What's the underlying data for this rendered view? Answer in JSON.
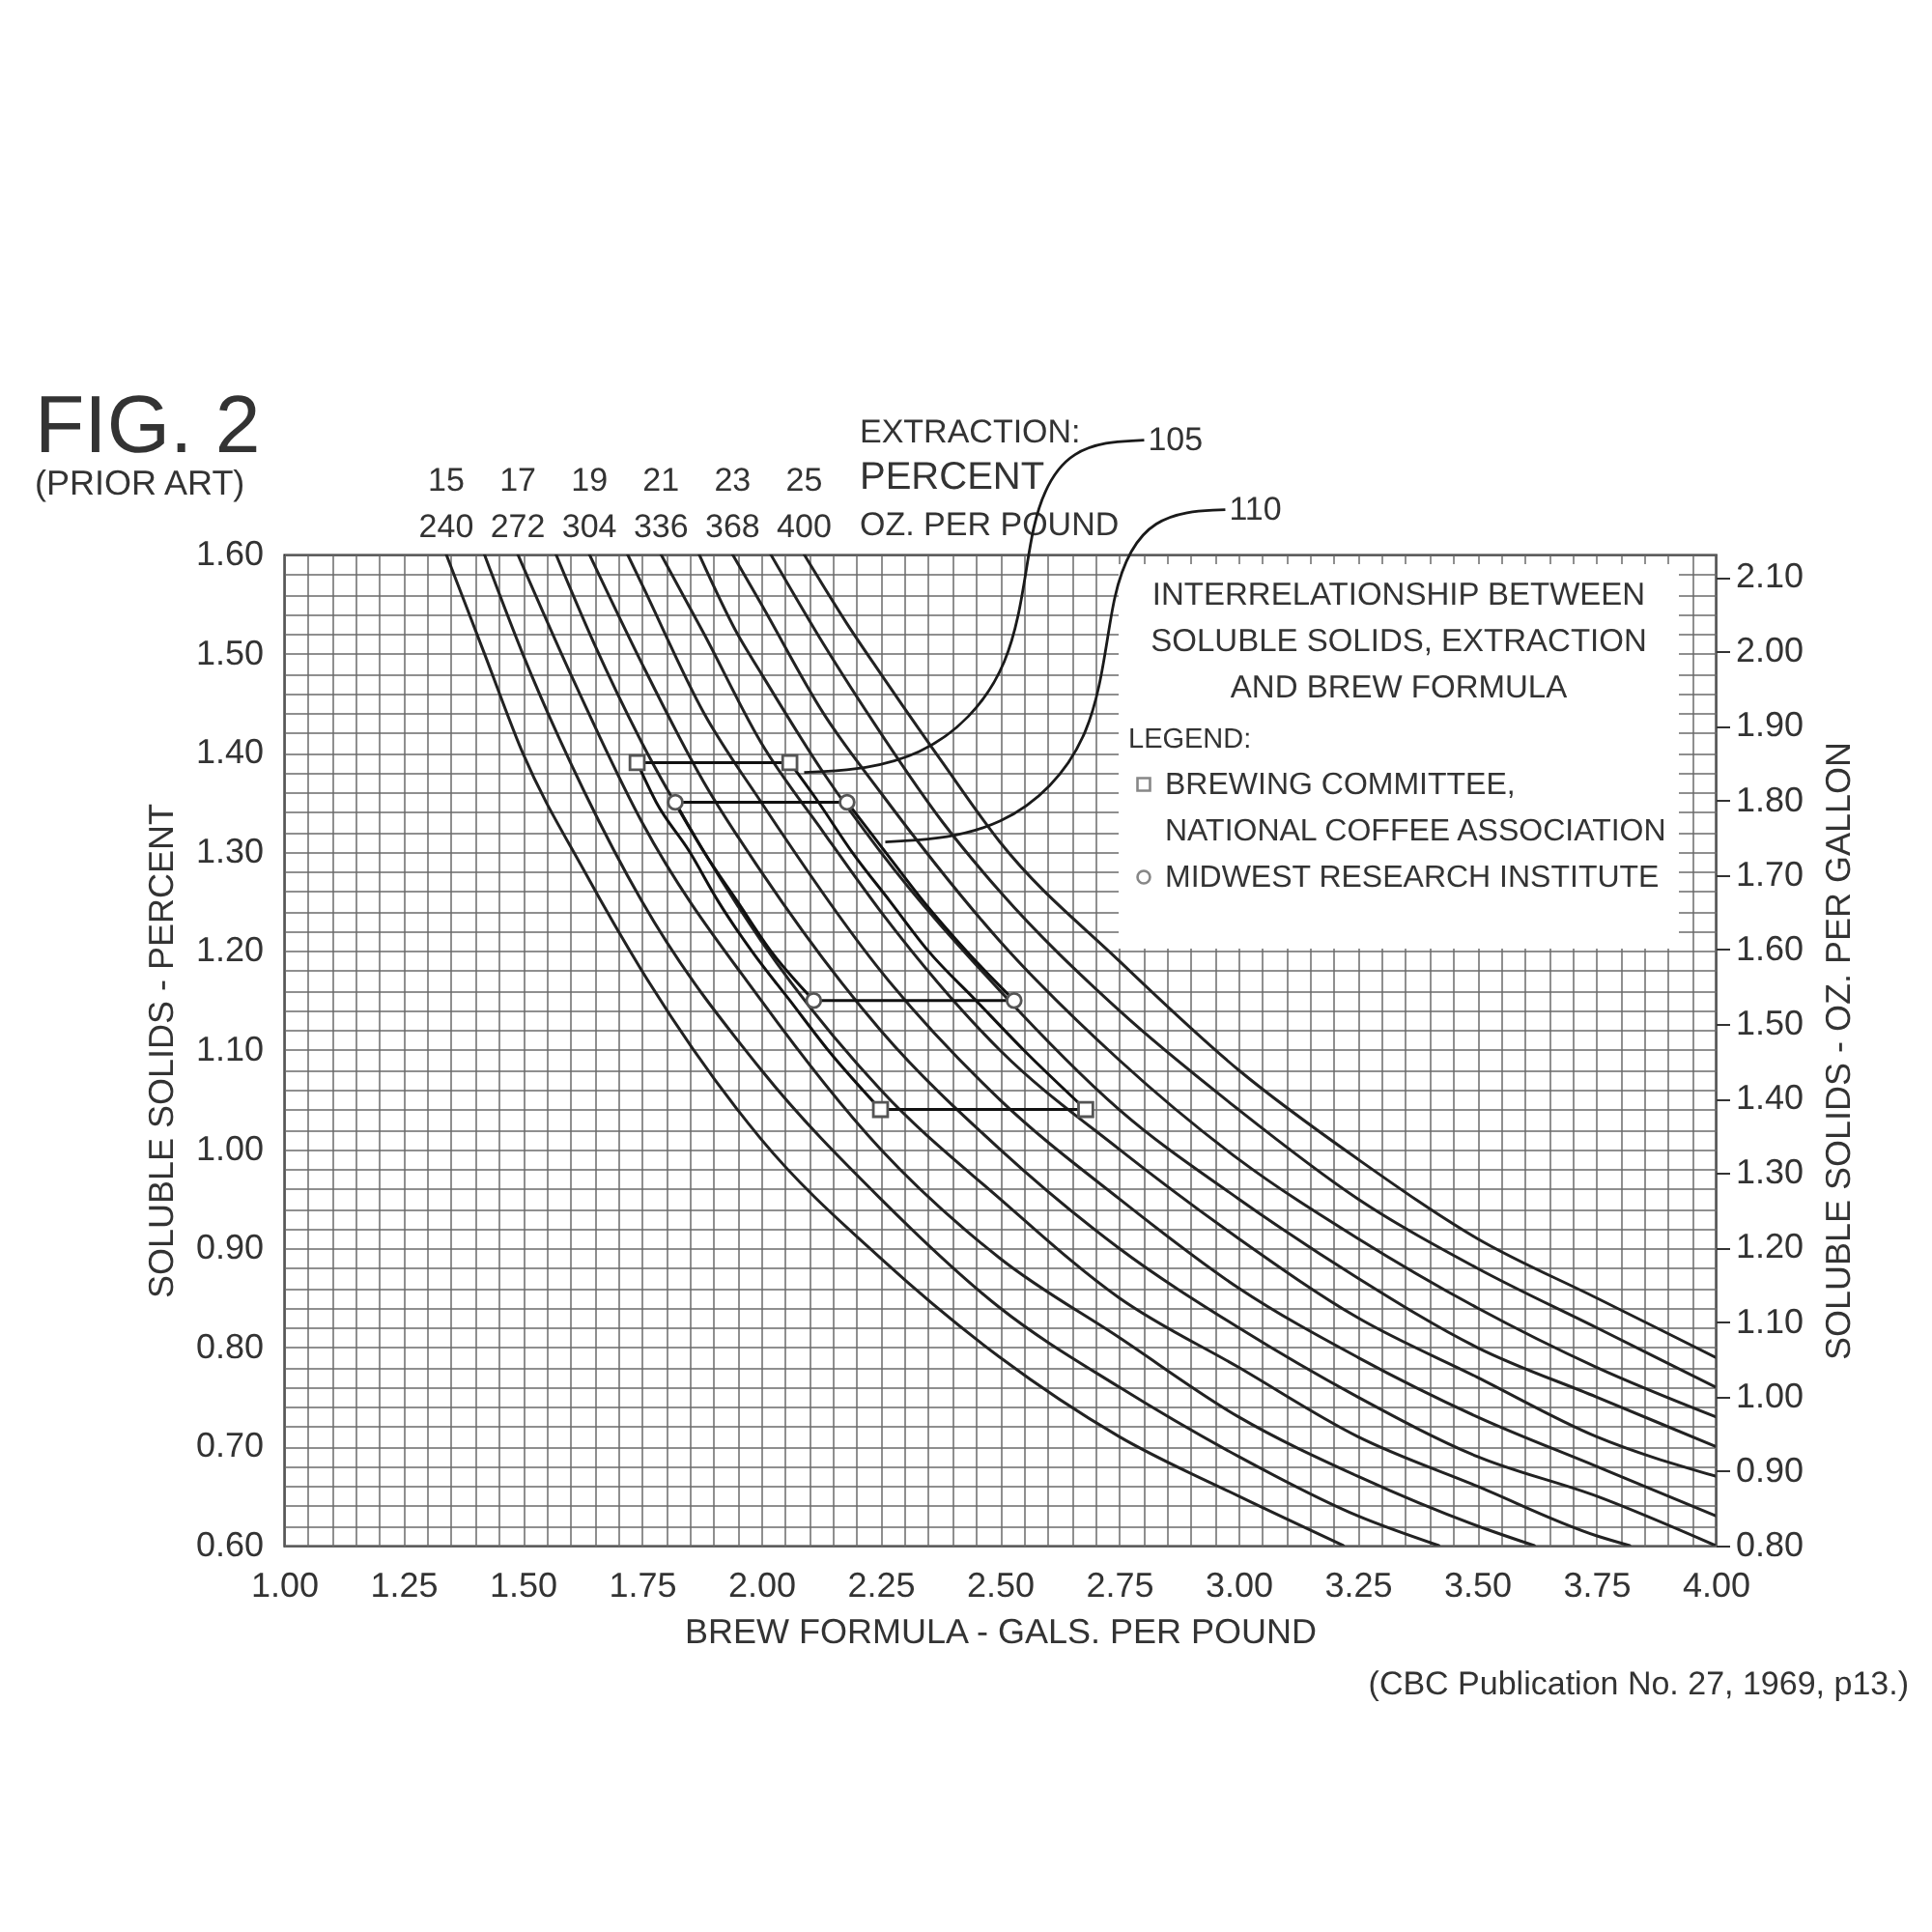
{
  "chart_data": {
    "type": "line",
    "title": "FIG. 2",
    "subtitle": "(PRIOR ART)",
    "xlabel": "BREW FORMULA - GALS. PER POUND",
    "ylabel": "SOLUBLE SOLIDS - PERCENT",
    "y2label": "SOLUBLE SOLIDS - OZ. PER GALLON",
    "legend_title": "LEGEND:",
    "legend": "top right",
    "grid": true,
    "annotations": [
      "EXTRACTION:",
      "PERCENT",
      "OZ. PER POUND",
      "INTERRELATIONSHIP BETWEEN SOLUBLE SOLIDS, EXTRACTION AND BREW FORMULA",
      "(CBC Publication No. 27, 1969, p13.)",
      {
        "text": "240",
        "x": 1.34,
        "y": 1.6
      },
      {
        "text": "272",
        "x": 1.49,
        "y": 1.6
      },
      {
        "text": "304",
        "x": 1.64,
        "y": 1.6
      },
      {
        "text": "336",
        "x": 1.79,
        "y": 1.6
      },
      {
        "text": "368",
        "x": 1.94,
        "y": 1.6
      },
      {
        "text": "400",
        "x": 2.09,
        "y": 1.6
      },
      {
        "text": "105",
        "x": 2.09,
        "y": 1.38
      },
      {
        "text": "110",
        "x": 2.26,
        "y": 1.31
      }
    ],
    "xlim": [
      1,
      4
    ],
    "xticks": [
      {
        "value": 1,
        "label": "1.00"
      },
      {
        "value": 1.05,
        "label": null
      },
      {
        "value": 1.1,
        "label": null
      },
      {
        "value": 1.15,
        "label": null
      },
      {
        "value": 1.2,
        "label": null
      },
      {
        "value": 1.25,
        "label": "1.25"
      },
      {
        "value": 1.3,
        "label": null
      },
      {
        "value": 1.35,
        "label": null
      },
      {
        "value": 1.4,
        "label": null
      },
      {
        "value": 1.45,
        "label": null
      },
      {
        "value": 1.5,
        "label": "1.50"
      },
      {
        "value": 1.55,
        "label": null
      },
      {
        "value": 1.6,
        "label": null
      },
      {
        "value": 1.65,
        "label": null
      },
      {
        "value": 1.7,
        "label": null
      },
      {
        "value": 1.75,
        "label": "1.75"
      },
      {
        "value": 1.8,
        "label": null
      },
      {
        "value": 1.85,
        "label": null
      },
      {
        "value": 1.9,
        "label": null
      },
      {
        "value": 1.95,
        "label": null
      },
      {
        "value": 2,
        "label": "2.00"
      },
      {
        "value": 2.05,
        "label": null
      },
      {
        "value": 2.1,
        "label": null
      },
      {
        "value": 2.15,
        "label": null
      },
      {
        "value": 2.2,
        "label": null
      },
      {
        "value": 2.25,
        "label": "2.25"
      },
      {
        "value": 2.3,
        "label": null
      },
      {
        "value": 2.35,
        "label": null
      },
      {
        "value": 2.4,
        "label": null
      },
      {
        "value": 2.45,
        "label": null
      },
      {
        "value": 2.5,
        "label": "2.50"
      },
      {
        "value": 2.55,
        "label": null
      },
      {
        "value": 2.6,
        "label": null
      },
      {
        "value": 2.65,
        "label": null
      },
      {
        "value": 2.7,
        "label": null
      },
      {
        "value": 2.75,
        "label": "2.75"
      },
      {
        "value": 2.8,
        "label": null
      },
      {
        "value": 2.85,
        "label": null
      },
      {
        "value": 2.9,
        "label": null
      },
      {
        "value": 2.95,
        "label": null
      },
      {
        "value": 3,
        "label": "3.00"
      },
      {
        "value": 3.05,
        "label": null
      },
      {
        "value": 3.1,
        "label": null
      },
      {
        "value": 3.15,
        "label": null
      },
      {
        "value": 3.2,
        "label": null
      },
      {
        "value": 3.25,
        "label": "3.25"
      },
      {
        "value": 3.3,
        "label": null
      },
      {
        "value": 3.35,
        "label": null
      },
      {
        "value": 3.4,
        "label": null
      },
      {
        "value": 3.45,
        "label": null
      },
      {
        "value": 3.5,
        "label": "3.50"
      },
      {
        "value": 3.55,
        "label": null
      },
      {
        "value": 3.6,
        "label": null
      },
      {
        "value": 3.65,
        "label": null
      },
      {
        "value": 3.7,
        "label": null
      },
      {
        "value": 3.75,
        "label": "3.75"
      },
      {
        "value": 3.8,
        "label": null
      },
      {
        "value": 3.85,
        "label": null
      },
      {
        "value": 3.9,
        "label": null
      },
      {
        "value": 3.95,
        "label": null
      },
      {
        "value": 4,
        "label": "4.00"
      }
    ],
    "ylim": [
      0.6,
      1.6
    ],
    "yticks": [
      {
        "value": 0.6,
        "label": "0.60"
      },
      {
        "value": 0.62,
        "label": null
      },
      {
        "value": 0.64,
        "label": null
      },
      {
        "value": 0.66,
        "label": null
      },
      {
        "value": 0.68,
        "label": null
      },
      {
        "value": 0.7,
        "label": "0.70"
      },
      {
        "value": 0.72,
        "label": null
      },
      {
        "value": 0.74,
        "label": null
      },
      {
        "value": 0.76,
        "label": null
      },
      {
        "value": 0.78,
        "label": null
      },
      {
        "value": 0.8,
        "label": "0.80"
      },
      {
        "value": 0.82,
        "label": null
      },
      {
        "value": 0.84,
        "label": null
      },
      {
        "value": 0.86,
        "label": null
      },
      {
        "value": 0.88,
        "label": null
      },
      {
        "value": 0.9,
        "label": "0.90"
      },
      {
        "value": 0.92,
        "label": null
      },
      {
        "value": 0.94,
        "label": null
      },
      {
        "value": 0.96,
        "label": null
      },
      {
        "value": 0.98,
        "label": null
      },
      {
        "value": 1,
        "label": "1.00"
      },
      {
        "value": 1.02,
        "label": null
      },
      {
        "value": 1.04,
        "label": null
      },
      {
        "value": 1.06,
        "label": null
      },
      {
        "value": 1.08,
        "label": null
      },
      {
        "value": 1.1,
        "label": "1.10"
      },
      {
        "value": 1.12,
        "label": null
      },
      {
        "value": 1.14,
        "label": null
      },
      {
        "value": 1.16,
        "label": null
      },
      {
        "value": 1.18,
        "label": null
      },
      {
        "value": 1.2,
        "label": "1.20"
      },
      {
        "value": 1.22,
        "label": null
      },
      {
        "value": 1.24,
        "label": null
      },
      {
        "value": 1.26,
        "label": null
      },
      {
        "value": 1.28,
        "label": null
      },
      {
        "value": 1.3,
        "label": "1.30"
      },
      {
        "value": 1.32,
        "label": null
      },
      {
        "value": 1.34,
        "label": null
      },
      {
        "value": 1.36,
        "label": null
      },
      {
        "value": 1.38,
        "label": null
      },
      {
        "value": 1.4,
        "label": "1.40"
      },
      {
        "value": 1.42,
        "label": null
      },
      {
        "value": 1.44,
        "label": null
      },
      {
        "value": 1.46,
        "label": null
      },
      {
        "value": 1.48,
        "label": null
      },
      {
        "value": 1.5,
        "label": "1.50"
      },
      {
        "value": 1.52,
        "label": null
      },
      {
        "value": 1.54,
        "label": null
      },
      {
        "value": 1.56,
        "label": null
      },
      {
        "value": 1.58,
        "label": null
      },
      {
        "value": 1.6,
        "label": "1.60"
      }
    ],
    "y2lim": [
      0.8,
      2.13
    ],
    "y2ticks": [
      {
        "value": 0.8,
        "label": "0.80"
      },
      {
        "value": 0.9,
        "label": "0.90"
      },
      {
        "value": 1,
        "label": "1.00"
      },
      {
        "value": 1.1,
        "label": "1.10"
      },
      {
        "value": 1.2,
        "label": "1.20"
      },
      {
        "value": 1.3,
        "label": "1.30"
      },
      {
        "value": 1.4,
        "label": "1.40"
      },
      {
        "value": 1.5,
        "label": "1.50"
      },
      {
        "value": 1.6,
        "label": "1.60"
      },
      {
        "value": 1.7,
        "label": "1.70"
      },
      {
        "value": 1.8,
        "label": "1.80"
      },
      {
        "value": 1.9,
        "label": "1.90"
      },
      {
        "value": 2,
        "label": "2.00"
      },
      {
        "value": 2.1,
        "label": "2.10"
      }
    ],
    "series": [
      {
        "name": "15",
        "color": "#222222",
        "x": [
          1.34,
          1.42,
          1.5,
          1.63,
          1.75,
          2,
          2.25,
          2.5,
          2.75,
          3,
          3.22
        ],
        "values": [
          1.6,
          1.5,
          1.4,
          1.28,
          1.18,
          1.01,
          0.89,
          0.79,
          0.71,
          0.65,
          0.6
        ]
      },
      {
        "color": "#222222",
        "x": [
          1.42,
          1.5,
          1.63,
          1.75,
          2,
          2.25,
          2.5,
          2.75,
          3,
          3.25,
          3.42
        ],
        "values": [
          1.6,
          1.5,
          1.36,
          1.25,
          1.08,
          0.95,
          0.84,
          0.76,
          0.69,
          0.63,
          0.6
        ]
      },
      {
        "name": "17",
        "color": "#222222",
        "x": [
          1.49,
          1.6,
          1.75,
          2,
          2.25,
          2.5,
          2.75,
          3,
          3.25,
          3.5,
          3.62
        ],
        "values": [
          1.6,
          1.48,
          1.33,
          1.15,
          1,
          0.89,
          0.81,
          0.73,
          0.67,
          0.62,
          0.6
        ]
      },
      {
        "color": "#222222",
        "x": [
          1.57,
          1.65,
          1.75,
          1.88,
          2,
          2.25,
          2.5,
          2.75,
          3,
          3.25,
          3.5,
          3.75,
          3.82
        ],
        "values": [
          1.6,
          1.51,
          1.41,
          1.3,
          1.21,
          1.06,
          0.95,
          0.85,
          0.78,
          0.71,
          0.66,
          0.61,
          0.6
        ]
      },
      {
        "name": "19",
        "color": "#222222",
        "x": [
          1.64,
          1.75,
          1.88,
          2,
          2.25,
          2.5,
          2.75,
          3,
          3.25,
          3.5,
          3.75,
          4
        ],
        "values": [
          1.6,
          1.49,
          1.37,
          1.28,
          1.12,
          1,
          0.9,
          0.82,
          0.75,
          0.69,
          0.65,
          0.6
        ]
      },
      {
        "color": "#222222",
        "x": [
          1.72,
          1.75,
          1.88,
          2,
          2.25,
          2.5,
          2.75,
          3,
          3.25,
          3.5,
          3.75,
          4
        ],
        "values": [
          1.6,
          1.57,
          1.44,
          1.35,
          1.18,
          1.05,
          0.95,
          0.86,
          0.79,
          0.73,
          0.68,
          0.63
        ]
      },
      {
        "name": "21",
        "color": "#222222",
        "x": [
          1.79,
          1.88,
          2,
          2.13,
          2.25,
          2.5,
          2.75,
          3,
          3.25,
          3.5,
          3.75,
          4
        ],
        "values": [
          1.6,
          1.52,
          1.41,
          1.32,
          1.24,
          1.1,
          1,
          0.91,
          0.83,
          0.77,
          0.71,
          0.67
        ]
      },
      {
        "color": "#222222",
        "x": [
          1.87,
          1.95,
          2,
          2.13,
          2.25,
          2.5,
          2.75,
          3,
          3.25,
          3.5,
          3.75,
          4
        ],
        "values": [
          1.6,
          1.52,
          1.48,
          1.38,
          1.3,
          1.16,
          1.04,
          0.95,
          0.87,
          0.8,
          0.75,
          0.7
        ]
      },
      {
        "name": "23",
        "color": "#222222",
        "x": [
          1.94,
          2,
          2.13,
          2.25,
          2.5,
          2.75,
          3,
          3.25,
          3.5,
          3.75,
          4
        ],
        "values": [
          1.6,
          1.55,
          1.44,
          1.36,
          1.21,
          1.09,
          0.99,
          0.91,
          0.84,
          0.78,
          0.73
        ]
      },
      {
        "color": "#222222",
        "x": [
          2.02,
          2.13,
          2.25,
          2.38,
          2.5,
          2.75,
          3,
          3.25,
          3.5,
          3.75,
          4
        ],
        "values": [
          1.6,
          1.51,
          1.42,
          1.33,
          1.26,
          1.14,
          1.04,
          0.95,
          0.88,
          0.82,
          0.76
        ]
      },
      {
        "name": "25",
        "color": "#222222",
        "x": [
          2.09,
          2.18,
          2.25,
          2.38,
          2.5,
          2.75,
          3,
          3.25,
          3.5,
          3.75,
          4
        ],
        "values": [
          1.6,
          1.53,
          1.48,
          1.39,
          1.31,
          1.19,
          1.08,
          0.99,
          0.91,
          0.85,
          0.79
        ]
      },
      {
        "color": "#111111",
        "x": [
          1.74,
          2.06
        ],
        "values": [
          1.39,
          1.39
        ]
      },
      {
        "color": "#111111",
        "x": [
          2.06,
          2.12,
          2.19,
          2.27,
          2.35,
          2.45,
          2.55,
          2.68
        ],
        "values": [
          1.39,
          1.35,
          1.3,
          1.25,
          1.2,
          1.15,
          1.1,
          1.04
        ]
      },
      {
        "color": "#111111",
        "x": [
          2.25,
          2.68
        ],
        "values": [
          1.04,
          1.04
        ]
      },
      {
        "color": "#111111",
        "x": [
          1.74,
          1.78,
          1.85,
          1.91,
          1.98,
          2.06,
          2.14,
          2.25
        ],
        "values": [
          1.39,
          1.35,
          1.3,
          1.25,
          1.2,
          1.15,
          1.1,
          1.04
        ]
      },
      {
        "color": "#111111",
        "x": [
          1.82,
          2.18
        ],
        "values": [
          1.35,
          1.35
        ]
      },
      {
        "color": "#111111",
        "x": [
          2.18,
          2.26,
          2.34,
          2.43,
          2.53
        ],
        "values": [
          1.35,
          1.3,
          1.25,
          1.2,
          1.15
        ]
      },
      {
        "color": "#111111",
        "x": [
          2.11,
          2.53
        ],
        "values": [
          1.15,
          1.15
        ]
      },
      {
        "color": "#111111",
        "x": [
          1.82,
          1.88,
          1.95,
          2.02,
          2.11
        ],
        "values": [
          1.35,
          1.3,
          1.25,
          1.2,
          1.15
        ]
      },
      {
        "name": "BREWING COMMITTEE, NATIONAL COFFEE ASSOCIATION",
        "type": "scatter",
        "marker": "square",
        "color": "#555555",
        "x": [
          1.74,
          2.06,
          2.68,
          2.25
        ],
        "values": [
          1.39,
          1.39,
          1.04,
          1.04
        ]
      },
      {
        "name": "MIDWEST RESEARCH INSTITUTE",
        "type": "scatter",
        "marker": "circle",
        "color": "#555555",
        "x": [
          1.82,
          2.18,
          2.53,
          2.11
        ],
        "values": [
          1.35,
          1.35,
          1.15,
          1.15
        ]
      }
    ]
  }
}
